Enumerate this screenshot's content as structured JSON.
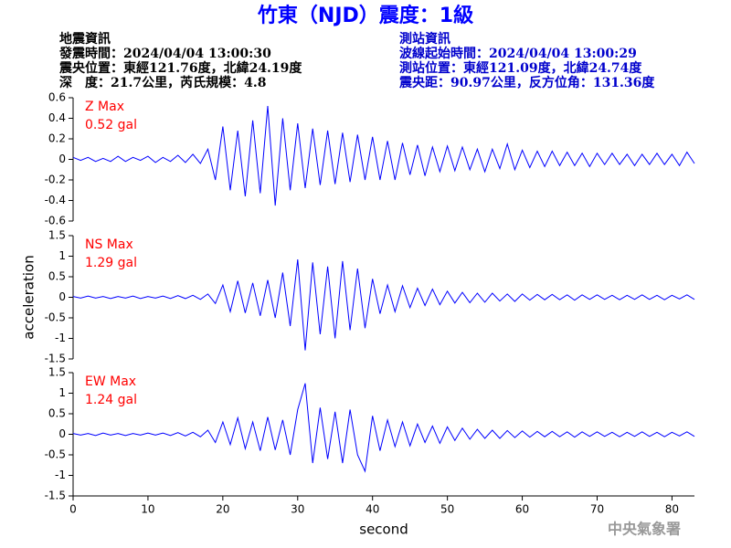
{
  "header": {
    "title": "竹東（NJD）震度：1級",
    "left": [
      "地震資訊",
      "發震時間：2024/04/04 13:00:30",
      "震央位置：東經121.76度，北緯24.19度",
      "深　度：21.7公里，芮氏規模：4.8"
    ],
    "right": [
      "測站資訊",
      "波線起始時間：2024/04/04 13:00:29",
      "測站位置：東經121.09度，北緯24.74度",
      "震央距：90.97公里，反方位角：131.36度"
    ],
    "watermark": "中央氣象署"
  },
  "chart_data": [
    {
      "type": "line",
      "label": "Z Max",
      "annotation": "0.52 gal",
      "color": "#0000ff",
      "label_color": "#ff0000",
      "xlim": [
        0,
        83
      ],
      "ylim": [
        -0.6,
        0.6
      ],
      "yticks": [
        0.6,
        0.4,
        0.2,
        0,
        -0.2,
        -0.4,
        -0.6
      ],
      "x": [
        0,
        1,
        2,
        3,
        4,
        5,
        6,
        7,
        8,
        9,
        10,
        11,
        12,
        13,
        14,
        15,
        16,
        17,
        18,
        19,
        20,
        21,
        22,
        23,
        24,
        25,
        26,
        27,
        28,
        29,
        30,
        31,
        32,
        33,
        34,
        35,
        36,
        37,
        38,
        39,
        40,
        41,
        42,
        43,
        44,
        45,
        46,
        47,
        48,
        49,
        50,
        51,
        52,
        53,
        54,
        55,
        56,
        57,
        58,
        59,
        60,
        61,
        62,
        63,
        64,
        65,
        66,
        67,
        68,
        69,
        70,
        71,
        72,
        73,
        74,
        75,
        76,
        77,
        78,
        79,
        80,
        81,
        82,
        83
      ],
      "values": [
        0.02,
        -0.01,
        0.02,
        -0.02,
        0.01,
        -0.02,
        0.03,
        -0.02,
        0.02,
        -0.01,
        0.03,
        -0.03,
        0.02,
        -0.02,
        0.04,
        -0.03,
        0.05,
        -0.04,
        0.1,
        -0.2,
        0.32,
        -0.3,
        0.28,
        -0.36,
        0.38,
        -0.33,
        0.52,
        -0.45,
        0.4,
        -0.3,
        0.35,
        -0.28,
        0.3,
        -0.25,
        0.28,
        -0.24,
        0.26,
        -0.22,
        0.24,
        -0.2,
        0.22,
        -0.2,
        0.18,
        -0.2,
        0.16,
        -0.15,
        0.14,
        -0.16,
        0.12,
        -0.12,
        0.13,
        -0.11,
        0.12,
        -0.1,
        0.1,
        -0.12,
        0.1,
        -0.09,
        0.15,
        -0.1,
        0.09,
        -0.08,
        0.08,
        -0.07,
        0.08,
        -0.06,
        0.07,
        -0.06,
        0.06,
        -0.07,
        0.06,
        -0.05,
        0.06,
        -0.05,
        0.05,
        -0.06,
        0.05,
        -0.05,
        0.06,
        -0.05,
        0.05,
        -0.06,
        0.07,
        -0.04
      ]
    },
    {
      "type": "line",
      "label": "NS Max",
      "annotation": "1.29 gal",
      "color": "#0000ff",
      "label_color": "#ff0000",
      "ylabel": "acceleration",
      "xlim": [
        0,
        83
      ],
      "ylim": [
        -1.5,
        1.5
      ],
      "yticks": [
        1.5,
        1,
        0.5,
        0,
        -0.5,
        -1,
        -1.5
      ],
      "x": [
        0,
        1,
        2,
        3,
        4,
        5,
        6,
        7,
        8,
        9,
        10,
        11,
        12,
        13,
        14,
        15,
        16,
        17,
        18,
        19,
        20,
        21,
        22,
        23,
        24,
        25,
        26,
        27,
        28,
        29,
        30,
        31,
        32,
        33,
        34,
        35,
        36,
        37,
        38,
        39,
        40,
        41,
        42,
        43,
        44,
        45,
        46,
        47,
        48,
        49,
        50,
        51,
        52,
        53,
        54,
        55,
        56,
        57,
        58,
        59,
        60,
        61,
        62,
        63,
        64,
        65,
        66,
        67,
        68,
        69,
        70,
        71,
        72,
        73,
        74,
        75,
        76,
        77,
        78,
        79,
        80,
        81,
        82,
        83
      ],
      "values": [
        0.02,
        -0.02,
        0.03,
        -0.02,
        0.02,
        -0.03,
        0.02,
        -0.02,
        0.03,
        -0.03,
        0.02,
        -0.02,
        0.03,
        -0.03,
        0.04,
        -0.03,
        0.05,
        -0.05,
        0.08,
        -0.15,
        0.3,
        -0.35,
        0.4,
        -0.38,
        0.35,
        -0.45,
        0.42,
        -0.5,
        0.6,
        -0.7,
        0.92,
        -1.29,
        0.85,
        -0.9,
        0.75,
        -1.0,
        0.88,
        -0.8,
        0.7,
        -0.75,
        0.45,
        -0.4,
        0.3,
        -0.35,
        0.28,
        -0.25,
        0.22,
        -0.2,
        0.2,
        -0.18,
        0.15,
        -0.14,
        0.12,
        -0.13,
        0.1,
        -0.12,
        0.1,
        -0.09,
        0.08,
        -0.1,
        0.08,
        -0.07,
        0.07,
        -0.06,
        0.07,
        -0.06,
        0.06,
        -0.07,
        0.06,
        -0.05,
        0.06,
        -0.05,
        0.05,
        -0.06,
        0.05,
        -0.05,
        0.06,
        -0.05,
        0.05,
        -0.06,
        0.05,
        -0.04,
        0.06,
        -0.05
      ]
    },
    {
      "type": "line",
      "label": "EW Max",
      "annotation": "1.24 gal",
      "color": "#0000ff",
      "label_color": "#ff0000",
      "xlabel": "second",
      "xlim": [
        0,
        83
      ],
      "xticks": [
        0,
        10,
        20,
        30,
        40,
        50,
        60,
        70,
        80
      ],
      "ylim": [
        -1.5,
        1.5
      ],
      "yticks": [
        1.5,
        1,
        0.5,
        0,
        -0.5,
        -1,
        -1.5
      ],
      "x": [
        0,
        1,
        2,
        3,
        4,
        5,
        6,
        7,
        8,
        9,
        10,
        11,
        12,
        13,
        14,
        15,
        16,
        17,
        18,
        19,
        20,
        21,
        22,
        23,
        24,
        25,
        26,
        27,
        28,
        29,
        30,
        31,
        32,
        33,
        34,
        35,
        36,
        37,
        38,
        39,
        40,
        41,
        42,
        43,
        44,
        45,
        46,
        47,
        48,
        49,
        50,
        51,
        52,
        53,
        54,
        55,
        56,
        57,
        58,
        59,
        60,
        61,
        62,
        63,
        64,
        65,
        66,
        67,
        68,
        69,
        70,
        71,
        72,
        73,
        74,
        75,
        76,
        77,
        78,
        79,
        80,
        81,
        82,
        83
      ],
      "values": [
        0.02,
        -0.02,
        0.02,
        -0.03,
        0.03,
        -0.02,
        0.02,
        -0.03,
        0.02,
        -0.02,
        0.03,
        -0.02,
        0.03,
        -0.03,
        0.04,
        -0.04,
        0.05,
        -0.06,
        0.1,
        -0.2,
        0.3,
        -0.25,
        0.4,
        -0.35,
        0.3,
        -0.4,
        0.42,
        -0.38,
        0.35,
        -0.5,
        0.6,
        1.24,
        -0.7,
        0.65,
        -0.6,
        0.55,
        -0.7,
        0.6,
        -0.5,
        -0.9,
        0.45,
        -0.4,
        0.35,
        -0.3,
        0.3,
        -0.28,
        0.25,
        -0.2,
        0.2,
        -0.22,
        0.18,
        -0.15,
        0.15,
        -0.12,
        0.12,
        -0.1,
        0.1,
        -0.1,
        0.09,
        -0.08,
        0.08,
        -0.07,
        0.07,
        -0.06,
        0.07,
        -0.06,
        0.06,
        -0.07,
        0.06,
        -0.05,
        0.06,
        -0.05,
        0.05,
        -0.06,
        0.05,
        -0.05,
        0.06,
        -0.05,
        0.05,
        -0.06,
        0.05,
        -0.04,
        0.06,
        -0.05
      ]
    }
  ]
}
